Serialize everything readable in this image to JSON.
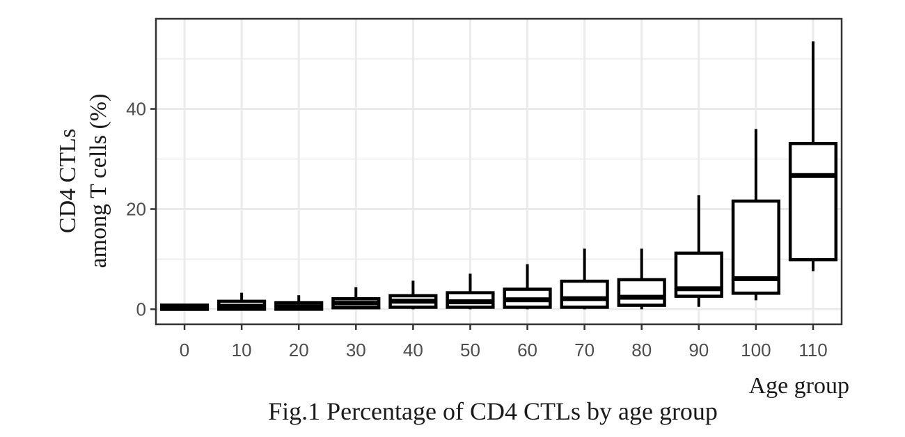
{
  "chart_data": {
    "type": "boxplot",
    "caption": "Fig.1 Percentage of CD4 CTLs by age group",
    "xlabel": "Age group",
    "ylabel_lines": [
      "CD4 CTLs",
      "among T cells (%)"
    ],
    "categories": [
      "0",
      "10",
      "20",
      "30",
      "40",
      "50",
      "60",
      "70",
      "80",
      "90",
      "100",
      "110"
    ],
    "y_ticks": [
      0,
      20,
      40
    ],
    "ylim": [
      -3,
      58
    ],
    "grid": true,
    "boxes": [
      {
        "category": "0",
        "lower_whisker": 0,
        "q1": 0,
        "median": 0.3,
        "q3": 0.8,
        "upper_whisker": 1.0
      },
      {
        "category": "10",
        "lower_whisker": 0,
        "q1": 0,
        "median": 0.6,
        "q3": 1.6,
        "upper_whisker": 3.3
      },
      {
        "category": "20",
        "lower_whisker": 0,
        "q1": 0,
        "median": 0.5,
        "q3": 1.3,
        "upper_whisker": 2.8
      },
      {
        "category": "30",
        "lower_whisker": 0,
        "q1": 0.3,
        "median": 1.2,
        "q3": 2.1,
        "upper_whisker": 4.4
      },
      {
        "category": "40",
        "lower_whisker": 0,
        "q1": 0.4,
        "median": 1.6,
        "q3": 2.7,
        "upper_whisker": 5.7
      },
      {
        "category": "50",
        "lower_whisker": 0,
        "q1": 0.4,
        "median": 1.5,
        "q3": 3.3,
        "upper_whisker": 7.1
      },
      {
        "category": "60",
        "lower_whisker": 0,
        "q1": 0.4,
        "median": 1.9,
        "q3": 4.0,
        "upper_whisker": 9.0
      },
      {
        "category": "70",
        "lower_whisker": 0,
        "q1": 0.4,
        "median": 2.1,
        "q3": 5.6,
        "upper_whisker": 12.1
      },
      {
        "category": "80",
        "lower_whisker": 0,
        "q1": 0.8,
        "median": 2.4,
        "q3": 5.9,
        "upper_whisker": 12.1
      },
      {
        "category": "90",
        "lower_whisker": 0.5,
        "q1": 2.6,
        "median": 4.1,
        "q3": 11.2,
        "upper_whisker": 22.8
      },
      {
        "category": "100",
        "lower_whisker": 1.8,
        "q1": 3.2,
        "median": 6.1,
        "q3": 21.6,
        "upper_whisker": 36.0
      },
      {
        "category": "110",
        "lower_whisker": 7.6,
        "q1": 9.9,
        "median": 26.7,
        "q3": 33.1,
        "upper_whisker": 53.5
      }
    ]
  }
}
